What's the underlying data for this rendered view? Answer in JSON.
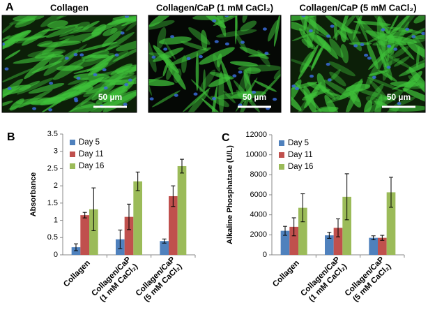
{
  "panel_a": {
    "label": "A",
    "images": [
      {
        "title": "Collagen",
        "scale_bar": "50 µm"
      },
      {
        "title": "Collagen/CaP (1 mM CaCl₂)",
        "scale_bar": "50 µm"
      },
      {
        "title": "Collagen/CaP (5 mM CaCl₂)",
        "scale_bar": "50 µm"
      }
    ]
  },
  "chart_data": [
    {
      "type": "bar",
      "panel_label": "B",
      "y_label": "Absorbance",
      "categories": [
        "Collagen",
        "Collagen/CaP\n(1 mM CaCl₂)",
        "Collagen/CaP\n(5 mM CaCl₂)"
      ],
      "series": [
        {
          "name": "Day 5",
          "color": "#4f81bd",
          "values": [
            0.22,
            0.45,
            0.4
          ],
          "errors": [
            0.1,
            0.27,
            0.06
          ]
        },
        {
          "name": "Day 11",
          "color": "#c0504d",
          "values": [
            1.15,
            1.1,
            1.7
          ],
          "errors": [
            0.08,
            0.37,
            0.3
          ]
        },
        {
          "name": "Day 16",
          "color": "#9bbb59",
          "values": [
            1.32,
            2.13,
            2.57
          ],
          "errors": [
            0.62,
            0.27,
            0.2
          ]
        }
      ],
      "ylim": [
        0,
        3.5
      ],
      "yticks": [
        0,
        0.5,
        1,
        1.5,
        2,
        2.5,
        3,
        3.5
      ],
      "legend": "upper left"
    },
    {
      "type": "bar",
      "panel_label": "C",
      "y_label": "Alkaline Phosphatase (U/L)",
      "categories": [
        "Collagen",
        "Collagen/CaP\n(1 mM CaCl₂)",
        "Collagen/CaP\n(5 mM CaCl₂)"
      ],
      "series": [
        {
          "name": "Day 5",
          "color": "#4f81bd",
          "values": [
            2400,
            1950,
            1700
          ],
          "errors": [
            450,
            300,
            200
          ]
        },
        {
          "name": "Day 11",
          "color": "#c0504d",
          "values": [
            2800,
            2700,
            1700
          ],
          "errors": [
            900,
            900,
            250
          ]
        },
        {
          "name": "Day 16",
          "color": "#9bbb59",
          "values": [
            4700,
            5800,
            6250
          ],
          "errors": [
            1400,
            2300,
            1500
          ]
        }
      ],
      "ylim": [
        0,
        12000
      ],
      "yticks": [
        0,
        2000,
        4000,
        6000,
        8000,
        10000,
        12000
      ],
      "legend": "upper left"
    }
  ]
}
